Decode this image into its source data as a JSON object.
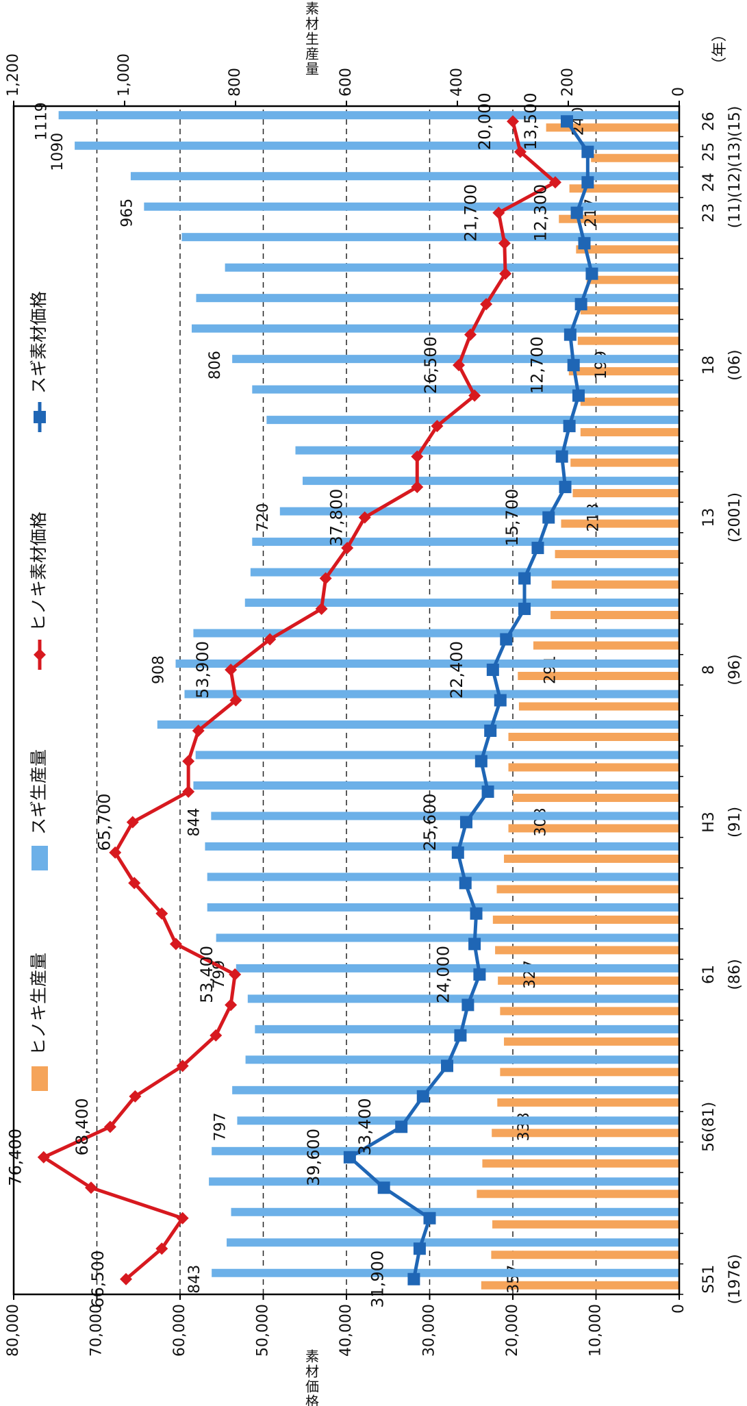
{
  "chart_data": {
    "type": "combo",
    "categories": [
      "S51",
      null,
      null,
      null,
      null,
      "56(81)",
      null,
      null,
      null,
      null,
      "61",
      null,
      null,
      null,
      null,
      "H3",
      null,
      null,
      null,
      null,
      "8",
      null,
      null,
      null,
      null,
      "13",
      null,
      null,
      null,
      null,
      "18",
      null,
      null,
      null,
      null,
      "23",
      "24",
      "25",
      "26"
    ],
    "category_sublabels": [
      "(1976)",
      null,
      null,
      null,
      null,
      null,
      null,
      null,
      null,
      null,
      "(86)",
      null,
      null,
      null,
      null,
      "(91)",
      null,
      null,
      null,
      null,
      "(96)",
      null,
      null,
      null,
      null,
      "(2001)",
      null,
      null,
      null,
      null,
      "(06)",
      null,
      null,
      null,
      null,
      "(11)",
      "(12)",
      "(13)",
      "(15)"
    ],
    "x_unit": "（年）",
    "ylabel": "素材価格",
    "y2label": "素材生産量",
    "ylim": [
      0,
      80000
    ],
    "yticks": [
      0,
      {
        "value": 10000,
        "label": "10,000"
      },
      {
        "value": 20000,
        "label": "20,000"
      },
      {
        "value": 30000,
        "label": "30,000"
      },
      {
        "value": 40000,
        "label": "40,000"
      },
      {
        "value": 50000,
        "label": "50,000"
      },
      {
        "value": 60000,
        "label": "60,000"
      },
      {
        "value": 70000,
        "label": "70,000"
      },
      {
        "value": 80000,
        "label": "80,000"
      }
    ],
    "y2lim": [
      0,
      1200
    ],
    "y2ticks": [
      0,
      200,
      400,
      600,
      800,
      {
        "value": 1000,
        "label": "1,000"
      },
      {
        "value": 1200,
        "label": "1,200"
      }
    ],
    "grid": true,
    "series": [
      {
        "name": "ヒノキ生産量",
        "type": "bar",
        "axis": "y2",
        "color": "#f5a45a",
        "values": [
          357,
          339,
          337,
          365,
          355,
          338,
          328,
          323,
          316,
          323,
          327,
          332,
          336,
          329,
          316,
          308,
          300,
          308,
          308,
          289,
          291,
          263,
          232,
          230,
          224,
          213,
          192,
          196,
          178,
          178,
          199,
          183,
          178,
          167,
          186,
          217,
          198,
          159,
          240
        ],
        "value_labels": [
          "357",
          null,
          null,
          null,
          null,
          "338",
          null,
          null,
          null,
          null,
          "327",
          null,
          null,
          null,
          null,
          "308",
          null,
          null,
          null,
          null,
          "291",
          null,
          null,
          null,
          null,
          "213",
          null,
          null,
          null,
          null,
          "199",
          null,
          null,
          null,
          null,
          "217",
          null,
          null,
          "240"
        ]
      },
      {
        "name": "スギ生産量",
        "type": "bar",
        "axis": "y2",
        "color": "#6cb0e8",
        "values": [
          843,
          816,
          808,
          848,
          843,
          797,
          806,
          782,
          765,
          778,
          799,
          835,
          851,
          851,
          855,
          844,
          876,
          872,
          941,
          892,
          908,
          876,
          783,
          773,
          770,
          720,
          679,
          692,
          744,
          770,
          806,
          879,
          871,
          819,
          897,
          965,
          989,
          1090,
          1119
        ],
        "value_labels": [
          "843",
          null,
          null,
          null,
          null,
          "797",
          null,
          null,
          null,
          null,
          "799",
          null,
          null,
          null,
          null,
          "844",
          null,
          null,
          null,
          null,
          "908",
          null,
          null,
          null,
          null,
          "720",
          null,
          null,
          null,
          null,
          "806",
          null,
          null,
          null,
          null,
          "965",
          null,
          "1090",
          "1119"
        ]
      },
      {
        "name": "ヒノキ素材価格",
        "type": "line",
        "marker": "diamond",
        "color": "#d7191f",
        "values": [
          66500,
          62200,
          59700,
          70700,
          76400,
          68400,
          65400,
          59700,
          55700,
          53900,
          53400,
          60500,
          62200,
          65500,
          67800,
          65700,
          59000,
          59000,
          57800,
          53300,
          53900,
          49200,
          43000,
          42500,
          39900,
          37800,
          31500,
          31500,
          29100,
          24600,
          26500,
          25100,
          23200,
          20900,
          21000,
          21700,
          14900,
          19100,
          20000
        ],
        "value_labels": [
          "66,500",
          null,
          null,
          null,
          "76,400",
          "68,400",
          null,
          null,
          null,
          null,
          "53,400",
          null,
          null,
          null,
          null,
          "65,700",
          null,
          null,
          null,
          null,
          "53,900",
          null,
          null,
          null,
          null,
          "37,800",
          null,
          null,
          null,
          null,
          "26,500",
          null,
          null,
          null,
          null,
          "21,700",
          null,
          null,
          "20,000"
        ]
      },
      {
        "name": "スギ素材価格",
        "type": "line",
        "marker": "square",
        "color": "#1f66b5",
        "values": [
          31900,
          31200,
          30000,
          35500,
          39600,
          33400,
          30800,
          27900,
          26300,
          25400,
          24000,
          24600,
          24400,
          25700,
          26600,
          25600,
          23000,
          23800,
          22700,
          21500,
          22400,
          20800,
          18600,
          18600,
          17000,
          15700,
          13700,
          14100,
          13200,
          12100,
          12700,
          13100,
          11800,
          10500,
          11400,
          12300,
          11000,
          11000,
          13500
        ],
        "value_labels": [
          "31,900",
          null,
          null,
          null,
          "39,600",
          "33,400",
          null,
          null,
          null,
          null,
          "24,000",
          null,
          null,
          null,
          null,
          "25,600",
          null,
          null,
          null,
          null,
          "22,400",
          null,
          null,
          null,
          null,
          "15,700",
          null,
          null,
          null,
          null,
          "12,700",
          null,
          null,
          null,
          null,
          "12,300",
          null,
          null,
          "13,500"
        ]
      }
    ]
  }
}
